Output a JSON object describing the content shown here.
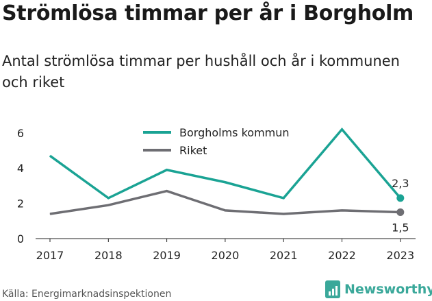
{
  "header": {
    "title": "Strömlösa timmar per år i Borgholm",
    "subtitle": "Antal strömlösa timmar per hushåll och år i kommunen och riket"
  },
  "footer": {
    "source": "Källa: Energimarknadsinspektionen",
    "brand": "Newsworthy"
  },
  "colors": {
    "kommun": "#1aa394",
    "riket": "#6e6e73",
    "axis": "#222222"
  },
  "chart_data": {
    "type": "line",
    "x": [
      "2017",
      "2018",
      "2019",
      "2020",
      "2021",
      "2022",
      "2023"
    ],
    "ylim": [
      0,
      6.6
    ],
    "yticks": [
      "0",
      "2",
      "4",
      "6"
    ],
    "grid": false,
    "legend_position": "top",
    "series": [
      {
        "name": "Borgholms kommun",
        "values": [
          4.7,
          2.3,
          3.9,
          3.2,
          2.3,
          6.2,
          2.3
        ],
        "end_label": "2,3"
      },
      {
        "name": "Riket",
        "values": [
          1.4,
          1.9,
          2.7,
          1.6,
          1.4,
          1.6,
          1.5
        ],
        "end_label": "1,5"
      }
    ]
  }
}
